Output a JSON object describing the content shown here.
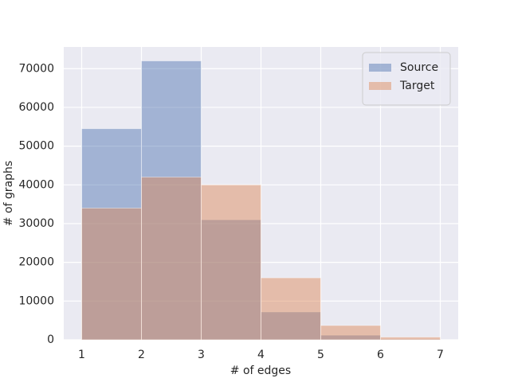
{
  "chart_data": {
    "type": "histogram",
    "xlabel": "# of edges",
    "ylabel": "# of graphs",
    "bins": [
      1,
      2,
      3,
      4,
      5,
      6,
      7
    ],
    "series": [
      {
        "name": "Source",
        "color": "#4c72b0",
        "values": [
          54500,
          72000,
          31000,
          7200,
          1200,
          200
        ]
      },
      {
        "name": "Target",
        "color": "#dd8452",
        "values": [
          34000,
          42000,
          40000,
          16000,
          3700,
          700
        ]
      }
    ],
    "opacity": 0.45,
    "xlim": [
      0.7,
      7.3
    ],
    "ylim": [
      0,
      75600
    ],
    "xticks": [
      1,
      2,
      3,
      4,
      5,
      6,
      7
    ],
    "yticks": [
      0,
      10000,
      20000,
      30000,
      40000,
      50000,
      60000,
      70000
    ],
    "grid": true,
    "legend": "upper right"
  }
}
